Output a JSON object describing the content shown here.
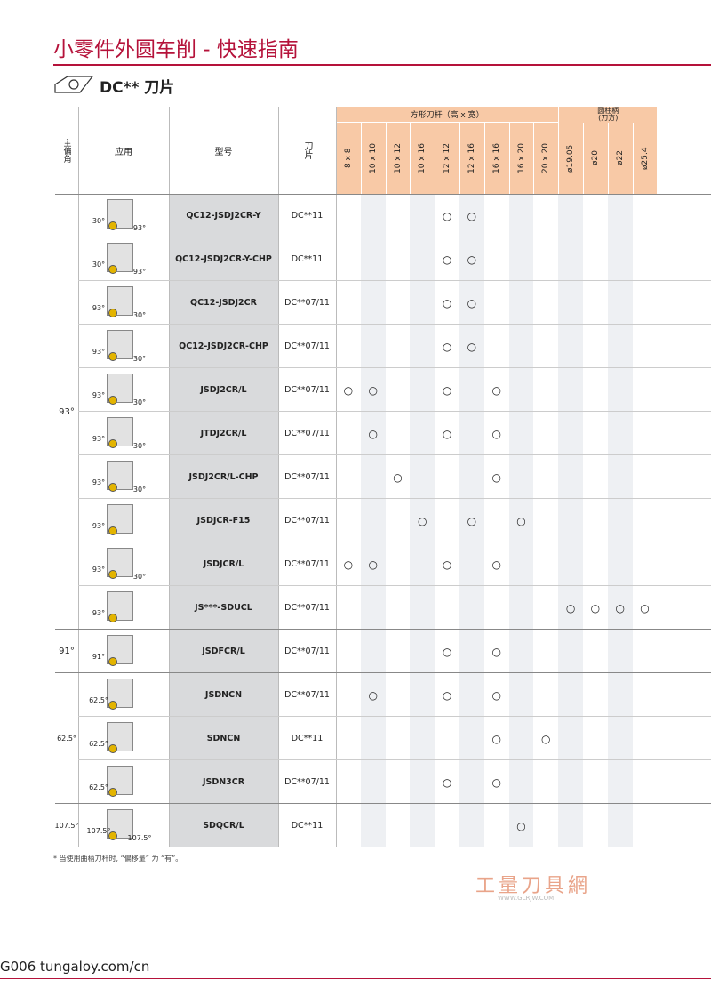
{
  "header": {
    "title": "小零件外圆车削 - 快速指南"
  },
  "section": {
    "title": "DC** 刀片"
  },
  "table": {
    "headers": {
      "angle": "主偏角",
      "application": "应用",
      "model": "型号",
      "insert": "刀片",
      "square_group": "方形刀杆（高 x 宽）",
      "round_group": "圆柱柄\n(刀方)",
      "columns": [
        "8 x 8",
        "10 x 10",
        "10 x 12",
        "10 x 16",
        "12 x 12",
        "12 x 16",
        "16 x 16",
        "16 x 20",
        "20 x 20",
        "ø19.05",
        "ø20",
        "ø22",
        "ø25.4"
      ]
    },
    "angle_groups": [
      {
        "label": "93°",
        "rows": 10
      },
      {
        "label": "91°",
        "rows": 1
      },
      {
        "label": "62.5°",
        "rows": 3
      },
      {
        "label": "107.5°",
        "rows": 1
      }
    ],
    "rows": [
      {
        "model": "QC12-JSDJ2CR-Y",
        "insert": "DC**11",
        "illus": [
          "30°",
          "93°"
        ],
        "cells": [
          null,
          null,
          null,
          null,
          "○",
          "○",
          null,
          null,
          null,
          null,
          null,
          null,
          null
        ]
      },
      {
        "model": "QC12-JSDJ2CR-Y-CHP",
        "insert": "DC**11",
        "illus": [
          "30°",
          "93°"
        ],
        "cells": [
          null,
          null,
          null,
          null,
          "○",
          "○",
          null,
          null,
          null,
          null,
          null,
          null,
          null
        ]
      },
      {
        "model": "QC12-JSDJ2CR",
        "insert": "DC**07/11",
        "illus": [
          "93°",
          "30°"
        ],
        "cells": [
          null,
          null,
          null,
          null,
          "○",
          "○",
          null,
          null,
          null,
          null,
          null,
          null,
          null
        ]
      },
      {
        "model": "QC12-JSDJ2CR-CHP",
        "insert": "DC**07/11",
        "illus": [
          "93°",
          "30°"
        ],
        "cells": [
          null,
          null,
          null,
          null,
          "○",
          "○",
          null,
          null,
          null,
          null,
          null,
          null,
          null
        ]
      },
      {
        "model": "JSDJ2CR/L",
        "insert": "DC**07/11",
        "illus": [
          "93°",
          "30°"
        ],
        "cells": [
          "○",
          "○",
          null,
          null,
          "○",
          null,
          "○",
          null,
          null,
          null,
          null,
          null,
          null
        ]
      },
      {
        "model": "JTDJ2CR/L",
        "insert": "DC**07/11",
        "illus": [
          "93°",
          "30°"
        ],
        "cells": [
          null,
          "○",
          null,
          null,
          "○",
          null,
          "○",
          null,
          null,
          null,
          null,
          null,
          null
        ]
      },
      {
        "model": "JSDJ2CR/L-CHP",
        "insert": "DC**07/11",
        "illus": [
          "93°",
          "30°"
        ],
        "cells": [
          null,
          null,
          "○",
          null,
          null,
          null,
          "○",
          null,
          null,
          null,
          null,
          null,
          null
        ]
      },
      {
        "model": "JSDJCR-F15",
        "insert": "DC**07/11",
        "illus": [
          "93°"
        ],
        "cells": [
          null,
          null,
          null,
          "○",
          null,
          "○",
          null,
          "○",
          null,
          null,
          null,
          null,
          null
        ]
      },
      {
        "model": "JSDJCR/L",
        "insert": "DC**07/11",
        "illus": [
          "93°",
          "30°"
        ],
        "cells": [
          "○",
          "○",
          null,
          null,
          "○",
          null,
          "○",
          null,
          null,
          null,
          null,
          null,
          null
        ]
      },
      {
        "model": "JS***-SDUCL",
        "insert": "DC**07/11",
        "illus": [
          "93°"
        ],
        "cells": [
          null,
          null,
          null,
          null,
          null,
          null,
          null,
          null,
          null,
          "○",
          "○",
          "○",
          "○"
        ]
      },
      {
        "model": "JSDFCR/L",
        "insert": "DC**07/11",
        "illus": [
          "91°"
        ],
        "cells": [
          null,
          null,
          null,
          null,
          "○",
          null,
          "○",
          null,
          null,
          null,
          null,
          null,
          null
        ]
      },
      {
        "model": "JSDNCN",
        "insert": "DC**07/11",
        "illus": [
          "62.5°"
        ],
        "cells": [
          null,
          "○",
          null,
          null,
          "○",
          null,
          "○",
          null,
          null,
          null,
          null,
          null,
          null
        ]
      },
      {
        "model": "SDNCN",
        "insert": "DC**11",
        "illus": [
          "62.5°"
        ],
        "cells": [
          null,
          null,
          null,
          null,
          null,
          null,
          "○",
          null,
          "○",
          null,
          null,
          null,
          null
        ]
      },
      {
        "model": "JSDN3CR",
        "insert": "DC**07/11",
        "illus": [
          "62.5°"
        ],
        "cells": [
          null,
          null,
          null,
          null,
          "○",
          null,
          "○",
          null,
          null,
          null,
          null,
          null,
          null
        ]
      },
      {
        "model": "SDQCR/L",
        "insert": "DC**11",
        "illus": [
          "107.5°",
          "107.5°"
        ],
        "cells": [
          null,
          null,
          null,
          null,
          null,
          null,
          null,
          "○",
          null,
          null,
          null,
          null,
          null
        ]
      }
    ]
  },
  "footnote": "* 当使用曲柄刀杆时, “偏移量” 为 “有”。",
  "watermark": {
    "name": "工量刀具網",
    "url": "WWW.GLRJW.COM"
  },
  "footer": {
    "page": "G006",
    "site": "tungaloy.com/cn"
  }
}
